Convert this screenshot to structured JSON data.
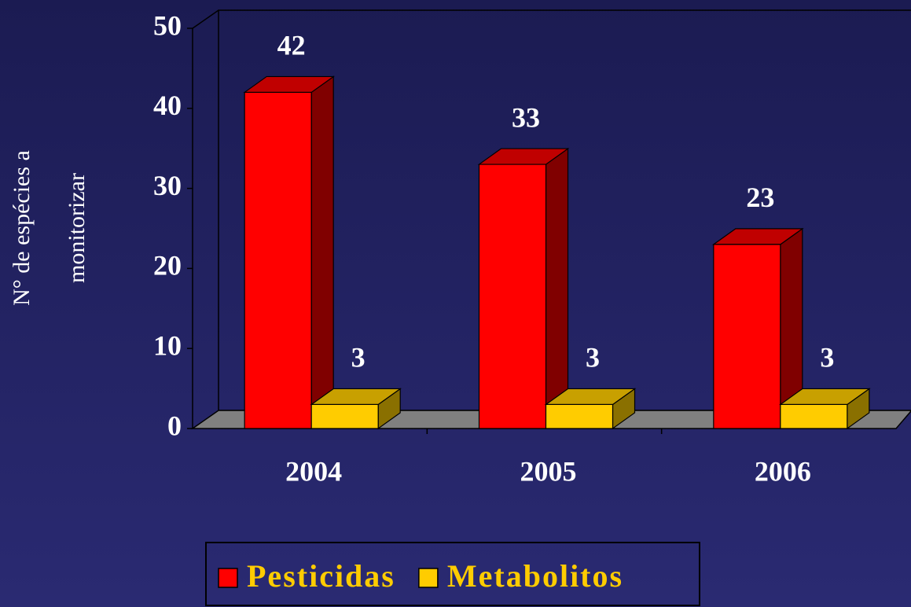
{
  "chart_data": {
    "type": "bar3d",
    "ylabel": [
      "N° de espécies a",
      "monitorizar"
    ],
    "categories": [
      "2004",
      "2005",
      "2006"
    ],
    "series": [
      {
        "name": "Pesticidas",
        "color": "#ff0000",
        "values": [
          42,
          33,
          23
        ]
      },
      {
        "name": "Metabolitos",
        "color": "#ffcc00",
        "values": [
          3,
          3,
          3
        ]
      }
    ],
    "ylim": [
      0,
      50
    ],
    "yticks": [
      0,
      10,
      20,
      30,
      40,
      50
    ]
  }
}
